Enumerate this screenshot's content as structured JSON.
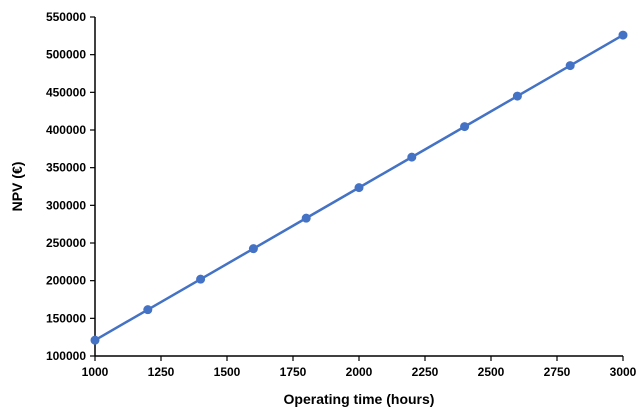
{
  "chart_data": {
    "type": "line",
    "title": "",
    "xlabel": "Operating time (hours)",
    "ylabel": "NPV (€)",
    "xlim": [
      1000,
      3000
    ],
    "ylim": [
      100000,
      550000
    ],
    "x_ticks": [
      1000,
      1250,
      1500,
      1750,
      2000,
      2250,
      2500,
      2750,
      3000
    ],
    "y_ticks": [
      100000,
      150000,
      200000,
      250000,
      300000,
      350000,
      400000,
      450000,
      500000,
      550000
    ],
    "grid": false,
    "legend": "none",
    "color": "#4472C4",
    "x": [
      1000,
      1200,
      1400,
      1600,
      1800,
      2000,
      2200,
      2400,
      2600,
      2800,
      3000
    ],
    "series": [
      {
        "values": [
          121000,
          161500,
          202000,
          242500,
          283000,
          323500,
          364000,
          404500,
          445000,
          485500,
          526000
        ]
      }
    ]
  }
}
